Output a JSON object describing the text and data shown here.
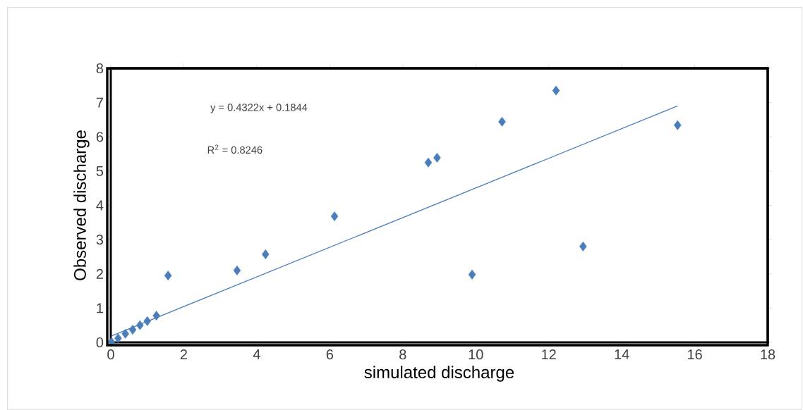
{
  "chart_data": {
    "type": "scatter",
    "xlabel": "simulated discharge",
    "ylabel": "Observed discharge",
    "xlim": [
      0,
      18
    ],
    "ylim": [
      0,
      8
    ],
    "xticks": [
      0,
      2,
      4,
      6,
      8,
      10,
      12,
      14,
      16,
      18
    ],
    "yticks": [
      0,
      1,
      2,
      3,
      4,
      5,
      6,
      7,
      8
    ],
    "grid": false,
    "marker": "diamond",
    "annotations": [
      "y = 0.4322x + 0.1844",
      "R$^{2}$ = 0.8246"
    ],
    "series": [
      {
        "color": "#4a7ebb",
        "x": [
          0.02,
          0.2,
          0.4,
          0.6,
          0.8,
          1.0,
          1.25,
          1.57,
          3.46,
          4.24,
          6.13,
          8.7,
          8.94,
          9.9,
          10.72,
          12.2,
          12.94,
          15.53
        ],
        "values": [
          0.01,
          0.12,
          0.25,
          0.37,
          0.5,
          0.62,
          0.78,
          1.95,
          2.1,
          2.57,
          3.68,
          5.25,
          5.39,
          1.98,
          6.44,
          7.35,
          2.8,
          6.34
        ]
      },
      {
        "type": "line",
        "color": "#4a7ebb",
        "marker": "none",
        "line_style": "solid",
        "x": [
          0.02,
          15.53
        ],
        "values": [
          0.19,
          6.9
        ]
      }
    ]
  }
}
